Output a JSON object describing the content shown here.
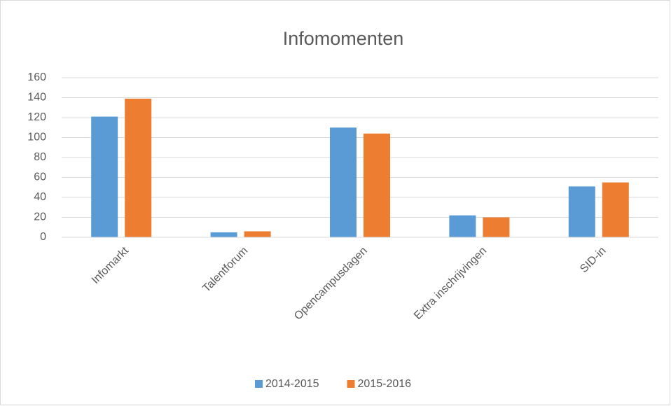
{
  "chart_data": {
    "type": "bar",
    "title": "Infomomenten",
    "categories": [
      "Infomarkt",
      "Talentforum",
      "Opencampusdagen",
      "Extra inschrijvingen",
      "SID-in"
    ],
    "series": [
      {
        "name": "2014-2015",
        "color": "#5b9bd5",
        "values": [
          121,
          5,
          110,
          22,
          51
        ]
      },
      {
        "name": "2015-2016",
        "color": "#ed7d31",
        "values": [
          139,
          6,
          104,
          20,
          55
        ]
      }
    ],
    "ylim": [
      0,
      160
    ],
    "yticks": [
      0,
      20,
      40,
      60,
      80,
      100,
      120,
      140,
      160
    ],
    "grid": true,
    "legend": "bottom"
  }
}
